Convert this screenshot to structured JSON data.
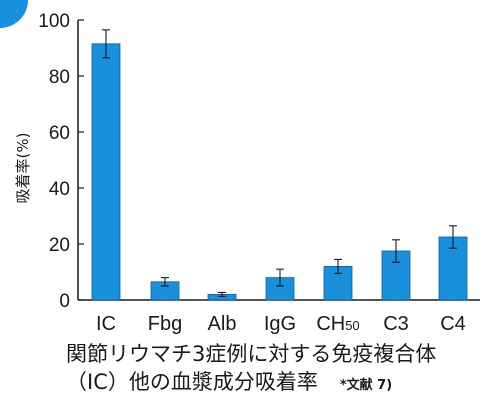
{
  "colors": {
    "bar": "#1a8fdc",
    "bar_edge": "#0d5f99",
    "axis": "#1a1a1a",
    "badge": "#1a8fdc"
  },
  "chart_data": {
    "type": "bar",
    "categories": [
      "IC",
      "Fbg",
      "Alb",
      "IgG",
      "CH50",
      "C3",
      "C4"
    ],
    "values": [
      91.5,
      6.5,
      2.0,
      8.0,
      12.0,
      17.5,
      22.5
    ],
    "errors": [
      5.0,
      1.5,
      0.7,
      3.0,
      2.5,
      4.0,
      4.0
    ],
    "ylabel": "吸着率(%)",
    "ylim": [
      0,
      100
    ],
    "yticks": [
      0,
      20,
      40,
      60,
      80,
      100
    ],
    "grid": false
  },
  "caption": {
    "line1": "関節リウマチ3症例に対する免疫複合体",
    "line2": "（IC）他の血漿成分吸着率",
    "ref": "*文献 7)"
  }
}
